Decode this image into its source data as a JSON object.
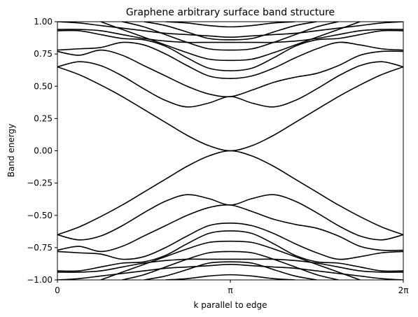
{
  "chart_data": {
    "type": "line",
    "title": "Graphene arbitrary surface band structure",
    "xlabel": "k parallel to edge",
    "ylabel": "Band energy",
    "xlim": [
      0,
      6.283185
    ],
    "ylim": [
      -1.0,
      1.0
    ],
    "x_ticks": [
      {
        "value": 0,
        "label": "0"
      },
      {
        "value": 3.141593,
        "label": "π"
      },
      {
        "value": 6.283185,
        "label": "2π"
      }
    ],
    "y_ticks": [
      {
        "value": 1.0,
        "label": "1.00"
      },
      {
        "value": 0.75,
        "label": "0.75"
      },
      {
        "value": 0.5,
        "label": "0.50"
      },
      {
        "value": 0.25,
        "label": "0.25"
      },
      {
        "value": 0.0,
        "label": "0.00"
      },
      {
        "value": -0.25,
        "label": "−0.25"
      },
      {
        "value": -0.5,
        "label": "−0.50"
      },
      {
        "value": -0.75,
        "label": "−0.75"
      },
      {
        "value": -1.0,
        "label": "−1.00"
      }
    ],
    "grid": false,
    "legend": "none",
    "line_color": "#000000",
    "x": [
      0,
      0.3927,
      0.7854,
      1.1781,
      1.5708,
      1.9635,
      2.3562,
      2.7489,
      3.1416,
      3.5343,
      3.927,
      4.3197,
      4.7124,
      5.1051,
      5.4978,
      5.8905,
      6.2832
    ],
    "series": [
      {
        "values": [
          0.65,
          0.59,
          0.51,
          0.42,
          0.32,
          0.22,
          0.12,
          0.04,
          0.0,
          0.04,
          0.12,
          0.22,
          0.32,
          0.42,
          0.51,
          0.59,
          0.65
        ]
      },
      {
        "values": [
          -0.65,
          -0.59,
          -0.51,
          -0.42,
          -0.32,
          -0.22,
          -0.12,
          -0.04,
          0.0,
          -0.04,
          -0.12,
          -0.22,
          -0.32,
          -0.42,
          -0.51,
          -0.59,
          -0.65
        ]
      },
      {
        "values": [
          0.65,
          0.69,
          0.66,
          0.58,
          0.48,
          0.39,
          0.34,
          0.37,
          0.42,
          0.37,
          0.34,
          0.39,
          0.48,
          0.58,
          0.66,
          0.69,
          0.65
        ]
      },
      {
        "values": [
          -0.65,
          -0.69,
          -0.66,
          -0.58,
          -0.48,
          -0.39,
          -0.34,
          -0.37,
          -0.42,
          -0.37,
          -0.34,
          -0.39,
          -0.48,
          -0.58,
          -0.66,
          -0.69,
          -0.65
        ]
      },
      {
        "values": [
          0.77,
          0.74,
          0.78,
          0.74,
          0.66,
          0.58,
          0.5,
          0.44,
          0.42,
          0.47,
          0.53,
          0.57,
          0.6,
          0.66,
          0.74,
          0.77,
          0.77
        ]
      },
      {
        "values": [
          -0.77,
          -0.74,
          -0.78,
          -0.74,
          -0.66,
          -0.58,
          -0.5,
          -0.44,
          -0.42,
          -0.47,
          -0.53,
          -0.57,
          -0.6,
          -0.66,
          -0.74,
          -0.77,
          -0.77
        ]
      },
      {
        "values": [
          0.78,
          0.79,
          0.8,
          0.84,
          0.82,
          0.75,
          0.66,
          0.58,
          0.56,
          0.58,
          0.64,
          0.72,
          0.79,
          0.84,
          0.82,
          0.79,
          0.78
        ]
      },
      {
        "values": [
          -0.78,
          -0.79,
          -0.8,
          -0.84,
          -0.82,
          -0.75,
          -0.66,
          -0.58,
          -0.56,
          -0.58,
          -0.64,
          -0.72,
          -0.79,
          -0.84,
          -0.82,
          -0.79,
          -0.78
        ]
      },
      {
        "values": [
          0.93,
          0.93,
          0.9,
          0.87,
          0.86,
          0.81,
          0.72,
          0.64,
          0.62,
          0.64,
          0.72,
          0.81,
          0.86,
          0.87,
          0.9,
          0.93,
          0.93
        ]
      },
      {
        "values": [
          -0.93,
          -0.93,
          -0.9,
          -0.87,
          -0.86,
          -0.81,
          -0.72,
          -0.64,
          -0.62,
          -0.64,
          -0.72,
          -0.81,
          -0.86,
          -0.87,
          -0.9,
          -0.93,
          -0.93
        ]
      },
      {
        "values": [
          0.94,
          0.94,
          0.93,
          0.9,
          0.87,
          0.85,
          0.84,
          0.84,
          0.84,
          0.84,
          0.84,
          0.85,
          0.87,
          0.9,
          0.93,
          0.94,
          0.94
        ]
      },
      {
        "values": [
          -0.94,
          -0.94,
          -0.93,
          -0.9,
          -0.87,
          -0.85,
          -0.84,
          -0.84,
          -0.84,
          -0.84,
          -0.84,
          -0.85,
          -0.87,
          -0.9,
          -0.93,
          -0.94,
          -0.94
        ]
      },
      {
        "values": [
          1.0,
          0.99,
          0.97,
          0.95,
          0.93,
          0.91,
          0.9,
          0.89,
          0.88,
          0.89,
          0.9,
          0.91,
          0.93,
          0.95,
          0.97,
          0.99,
          1.0
        ]
      },
      {
        "values": [
          -1.0,
          -0.99,
          -0.97,
          -0.95,
          -0.93,
          -0.91,
          -0.9,
          -0.89,
          -0.88,
          -0.89,
          -0.9,
          -0.91,
          -0.93,
          -0.95,
          -0.97,
          -0.99,
          -1.0
        ]
      },
      {
        "values": [
          null,
          null,
          1.0,
          0.94,
          0.88,
          0.82,
          0.76,
          0.71,
          0.7,
          0.71,
          0.76,
          0.82,
          0.88,
          0.94,
          1.0,
          null,
          null
        ]
      },
      {
        "values": [
          null,
          null,
          -1.0,
          -0.94,
          -0.88,
          -0.82,
          -0.76,
          -0.71,
          -0.7,
          -0.71,
          -0.76,
          -0.82,
          -0.88,
          -0.94,
          -1.0,
          null,
          null
        ]
      },
      {
        "values": [
          null,
          null,
          null,
          1.0,
          0.96,
          0.9,
          0.84,
          0.79,
          0.78,
          0.79,
          0.84,
          0.9,
          0.96,
          1.0,
          null,
          null,
          null
        ]
      },
      {
        "values": [
          null,
          null,
          null,
          -1.0,
          -0.96,
          -0.9,
          -0.84,
          -0.79,
          -0.78,
          -0.79,
          -0.84,
          -0.9,
          -0.96,
          -1.0,
          null,
          null,
          null
        ]
      },
      {
        "values": [
          null,
          null,
          null,
          null,
          1.0,
          0.97,
          0.92,
          0.87,
          0.86,
          0.87,
          0.92,
          0.97,
          1.0,
          null,
          null,
          null,
          null
        ]
      },
      {
        "values": [
          null,
          null,
          null,
          null,
          -1.0,
          -0.97,
          -0.92,
          -0.87,
          -0.86,
          -0.87,
          -0.92,
          -0.97,
          -1.0,
          null,
          null,
          null,
          null
        ]
      },
      {
        "values": [
          null,
          null,
          null,
          null,
          null,
          1.0,
          0.99,
          0.97,
          0.96,
          0.97,
          0.99,
          1.0,
          null,
          null,
          null,
          null,
          null
        ]
      },
      {
        "values": [
          null,
          null,
          null,
          null,
          null,
          -1.0,
          -0.99,
          -0.97,
          -0.96,
          -0.97,
          -0.99,
          -1.0,
          null,
          null,
          null,
          null,
          null
        ]
      }
    ]
  }
}
